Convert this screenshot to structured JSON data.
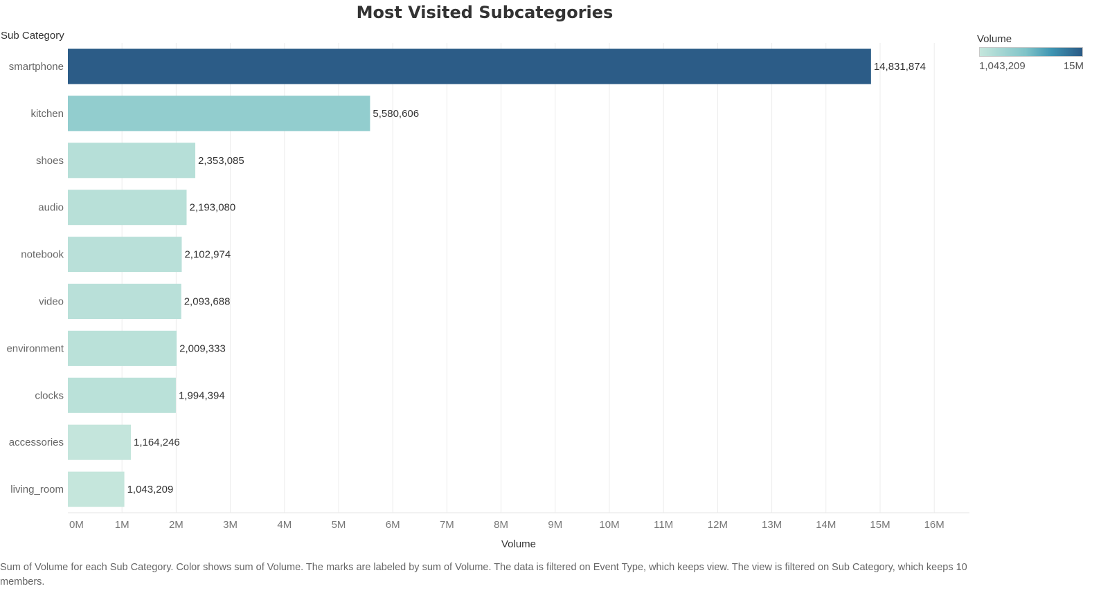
{
  "chart_data": {
    "type": "bar",
    "orientation": "horizontal",
    "title": "Most Visited Subcategories",
    "ylabel": "Sub Category",
    "xlabel": "Volume",
    "categories": [
      "smartphone",
      "kitchen",
      "shoes",
      "audio",
      "notebook",
      "video",
      "environment",
      "clocks",
      "accessories",
      "living_room"
    ],
    "values": [
      14831874,
      5580606,
      2353085,
      2193080,
      2102974,
      2093688,
      2009333,
      1994394,
      1164246,
      1043209
    ],
    "value_labels": [
      "14,831,874",
      "5,580,606",
      "2,353,085",
      "2,193,080",
      "2,102,974",
      "2,093,688",
      "2,009,333",
      "1,994,394",
      "1,164,246",
      "1,043,209"
    ],
    "xlim": [
      0,
      16000000
    ],
    "x_ticks": [
      0,
      1000000,
      2000000,
      3000000,
      4000000,
      5000000,
      6000000,
      7000000,
      8000000,
      9000000,
      10000000,
      11000000,
      12000000,
      13000000,
      14000000,
      15000000,
      16000000
    ],
    "x_tick_labels": [
      "0M",
      "1M",
      "2M",
      "3M",
      "4M",
      "5M",
      "6M",
      "7M",
      "8M",
      "9M",
      "10M",
      "11M",
      "12M",
      "13M",
      "14M",
      "15M",
      "16M"
    ],
    "grid": true,
    "legend": {
      "title": "Volume",
      "min_label": "1,043,209",
      "max_label": "15M",
      "placement": "top-right",
      "color_scale": [
        "#c5e6dc",
        "#7fc3c8",
        "#3f95b2",
        "#2b5a85"
      ]
    }
  },
  "footnote": "Sum of Volume for each Sub Category.  Color shows sum of Volume.  The marks are labeled by sum of Volume. The data is filtered on Event Type, which keeps view. The view is filtered on Sub Category, which keeps 10 members."
}
